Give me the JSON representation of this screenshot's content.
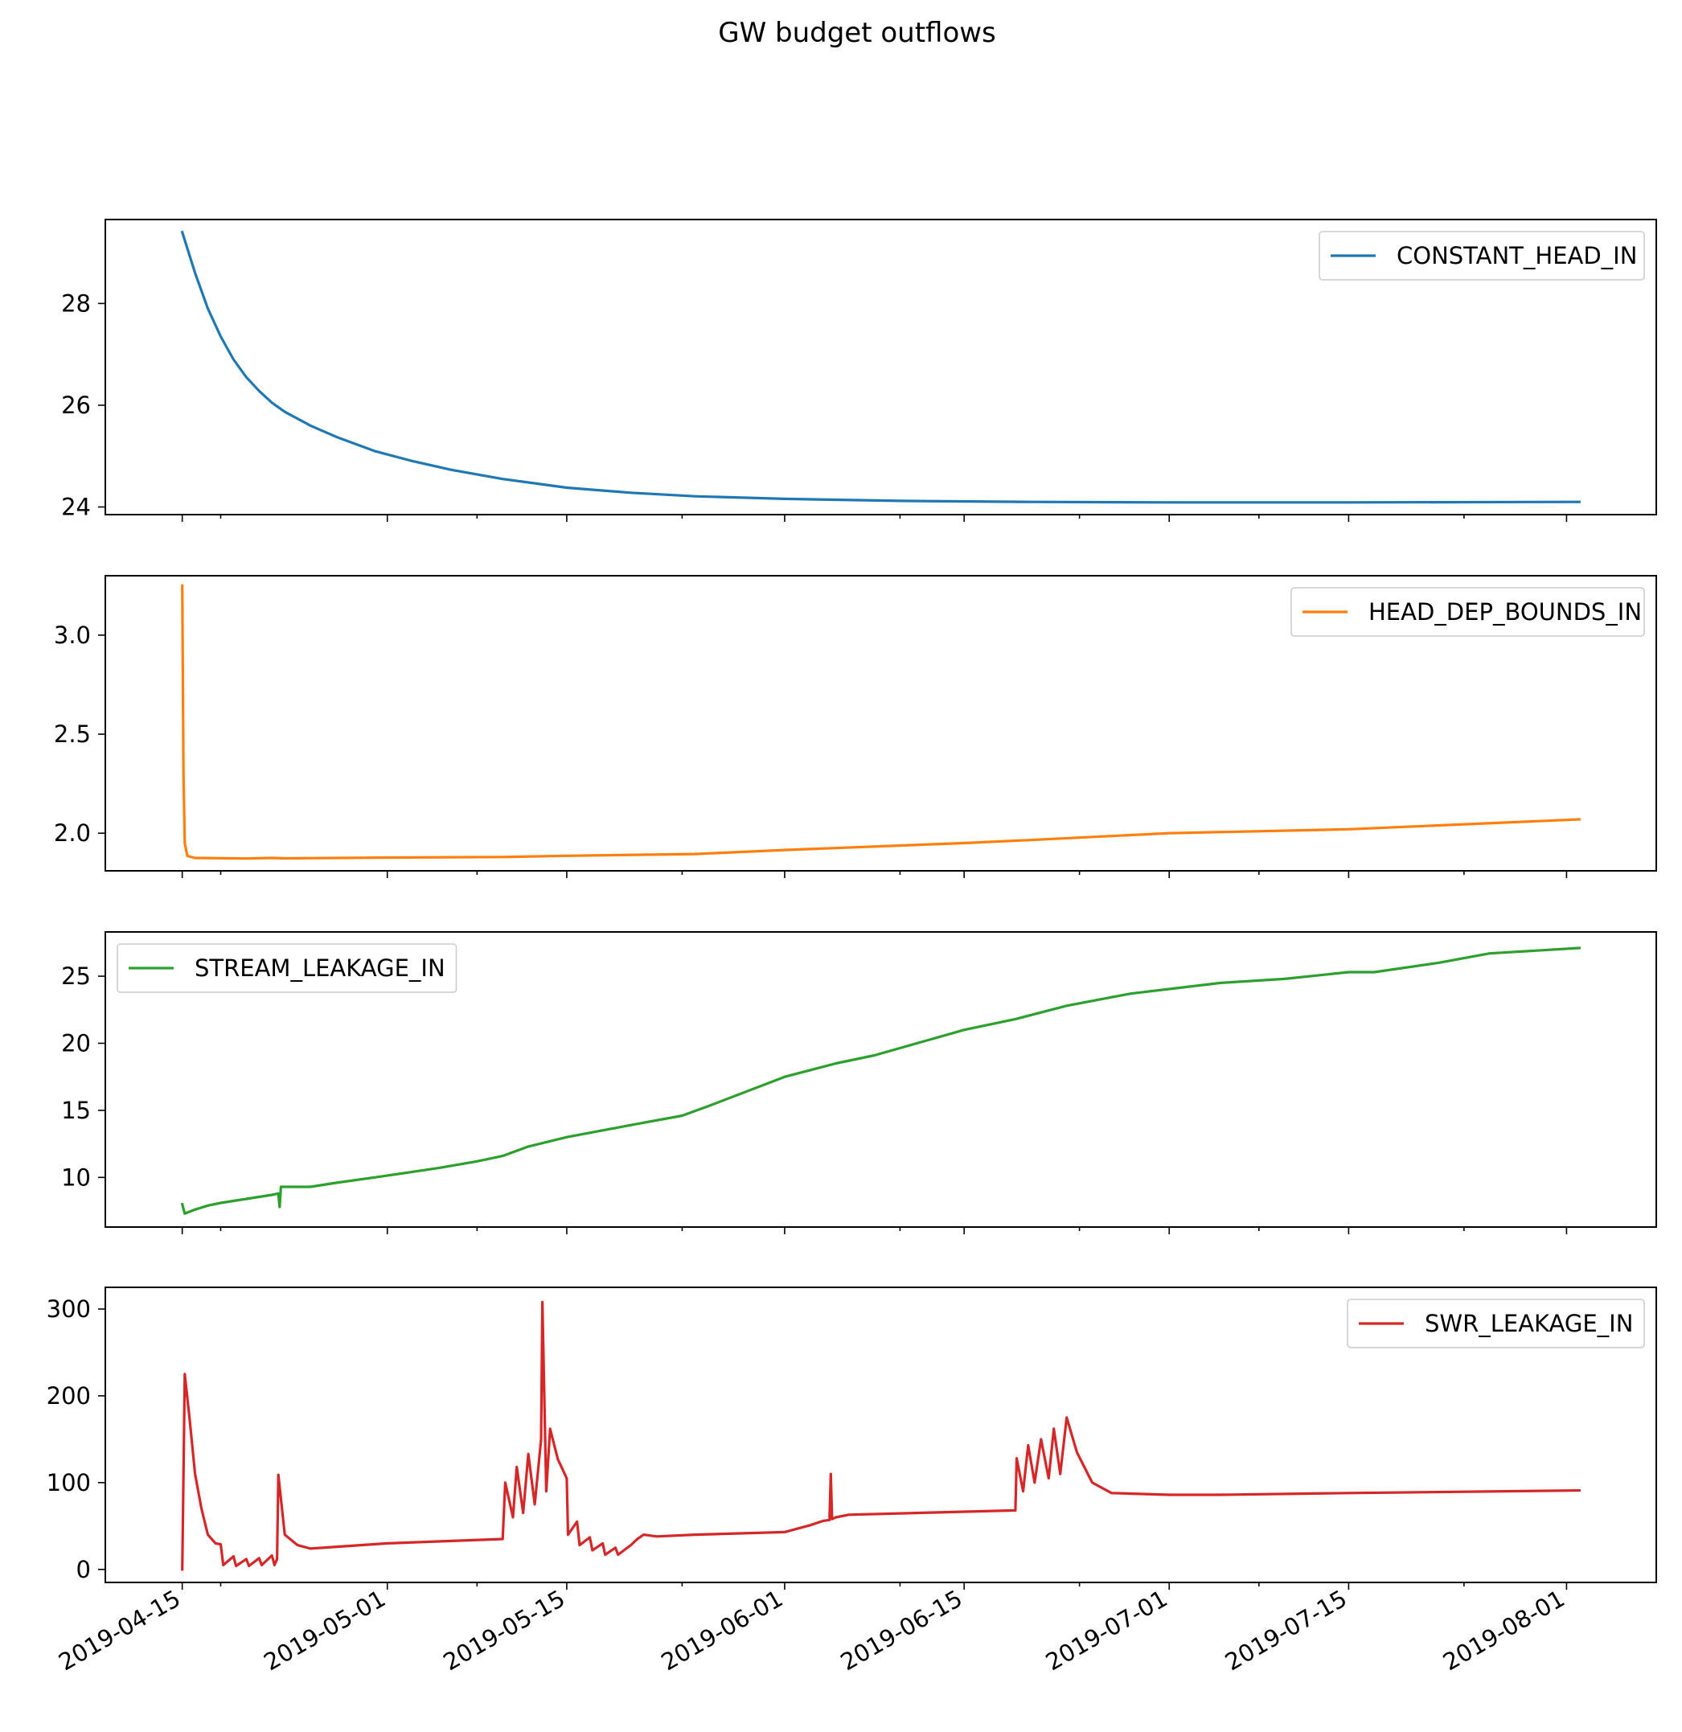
{
  "chart_data": {
    "type": "line",
    "title": "GW budget outflows",
    "x_axis": {
      "type": "date",
      "ticks": [
        "2019-04-15",
        "2019-05-01",
        "2019-05-15",
        "2019-06-01",
        "2019-06-15",
        "2019-07-01",
        "2019-07-15",
        "2019-08-01"
      ],
      "minor_ticks": [
        "2019-04-18",
        "2019-05-08",
        "2019-05-24",
        "2019-06-10",
        "2019-06-24",
        "2019-07-08",
        "2019-07-24"
      ],
      "xlim": [
        "2019-04-09",
        "2019-08-08"
      ]
    },
    "panels": [
      {
        "legend": "CONSTANT_HEAD_IN",
        "legend_loc": "upper right",
        "color": "#1f77b4",
        "ylim": [
          23.85,
          29.65
        ],
        "yticks": [
          24,
          26,
          28
        ],
        "points": [
          [
            "2019-04-15",
            29.4
          ],
          [
            "2019-04-16",
            28.6
          ],
          [
            "2019-04-17",
            27.9
          ],
          [
            "2019-04-18",
            27.35
          ],
          [
            "2019-04-19",
            26.9
          ],
          [
            "2019-04-20",
            26.55
          ],
          [
            "2019-04-21",
            26.28
          ],
          [
            "2019-04-22",
            26.05
          ],
          [
            "2019-04-23",
            25.87
          ],
          [
            "2019-04-25",
            25.6
          ],
          [
            "2019-04-27",
            25.38
          ],
          [
            "2019-04-30",
            25.1
          ],
          [
            "2019-05-03",
            24.9
          ],
          [
            "2019-05-06",
            24.73
          ],
          [
            "2019-05-10",
            24.55
          ],
          [
            "2019-05-15",
            24.38
          ],
          [
            "2019-05-20",
            24.28
          ],
          [
            "2019-05-25",
            24.21
          ],
          [
            "2019-06-01",
            24.16
          ],
          [
            "2019-06-10",
            24.12
          ],
          [
            "2019-06-20",
            24.1
          ],
          [
            "2019-07-01",
            24.09
          ],
          [
            "2019-07-15",
            24.09
          ],
          [
            "2019-08-02",
            24.1
          ]
        ]
      },
      {
        "legend": "HEAD_DEP_BOUNDS_IN",
        "legend_loc": "upper right",
        "color": "#ff7f0e",
        "ylim": [
          1.81,
          3.3
        ],
        "yticks": [
          2.0,
          2.5,
          3.0
        ],
        "points": [
          [
            "2019-04-15",
            3.25
          ],
          [
            "2019-04-15.1",
            2.3
          ],
          [
            "2019-04-15.2",
            1.95
          ],
          [
            "2019-04-15.4",
            1.885
          ],
          [
            "2019-04-16",
            1.875
          ],
          [
            "2019-04-20",
            1.872
          ],
          [
            "2019-04-22",
            1.875
          ],
          [
            "2019-04-23",
            1.873
          ],
          [
            "2019-05-01",
            1.877
          ],
          [
            "2019-05-10",
            1.88
          ],
          [
            "2019-05-15",
            1.886
          ],
          [
            "2019-05-25",
            1.895
          ],
          [
            "2019-06-01",
            1.915
          ],
          [
            "2019-06-15",
            1.95
          ],
          [
            "2019-06-20",
            1.965
          ],
          [
            "2019-07-01",
            2.0
          ],
          [
            "2019-07-15",
            2.02
          ],
          [
            "2019-08-02",
            2.07
          ]
        ]
      },
      {
        "legend": "STREAM_LEAKAGE_IN",
        "legend_loc": "upper left",
        "color": "#2ca02c",
        "ylim": [
          6.3,
          28.3
        ],
        "yticks": [
          10,
          15,
          20,
          25
        ],
        "points": [
          [
            "2019-04-15",
            8.0
          ],
          [
            "2019-04-15.2",
            7.3
          ],
          [
            "2019-04-16",
            7.6
          ],
          [
            "2019-04-17",
            7.9
          ],
          [
            "2019-04-18",
            8.1
          ],
          [
            "2019-04-20",
            8.4
          ],
          [
            "2019-04-22",
            8.7
          ],
          [
            "2019-04-22.5",
            8.8
          ],
          [
            "2019-04-22.6",
            7.8
          ],
          [
            "2019-04-22.7",
            9.3
          ],
          [
            "2019-04-25",
            9.3
          ],
          [
            "2019-04-27",
            9.6
          ],
          [
            "2019-04-30",
            10.0
          ],
          [
            "2019-05-05",
            10.7
          ],
          [
            "2019-05-08",
            11.2
          ],
          [
            "2019-05-10",
            11.6
          ],
          [
            "2019-05-12",
            12.3
          ],
          [
            "2019-05-15",
            13.0
          ],
          [
            "2019-05-20",
            13.9
          ],
          [
            "2019-05-24",
            14.6
          ],
          [
            "2019-05-26",
            15.3
          ],
          [
            "2019-06-01",
            17.5
          ],
          [
            "2019-06-05",
            18.5
          ],
          [
            "2019-06-08",
            19.1
          ],
          [
            "2019-06-15",
            21.0
          ],
          [
            "2019-06-19",
            21.8
          ],
          [
            "2019-06-23",
            22.8
          ],
          [
            "2019-06-28",
            23.7
          ],
          [
            "2019-07-05",
            24.5
          ],
          [
            "2019-07-10",
            24.8
          ],
          [
            "2019-07-15",
            25.3
          ],
          [
            "2019-07-17",
            25.3
          ],
          [
            "2019-07-22",
            26.0
          ],
          [
            "2019-07-26",
            26.7
          ],
          [
            "2019-08-02",
            27.1
          ]
        ]
      },
      {
        "legend": "SWR_LEAKAGE_IN",
        "legend_loc": "upper right",
        "color": "#d62728",
        "ylim": [
          -15,
          325
        ],
        "yticks": [
          0,
          100,
          200,
          300
        ],
        "points": [
          [
            "2019-04-15",
            0
          ],
          [
            "2019-04-15.2",
            225
          ],
          [
            "2019-04-15.6",
            170
          ],
          [
            "2019-04-16",
            110
          ],
          [
            "2019-04-16.5",
            70
          ],
          [
            "2019-04-17",
            40
          ],
          [
            "2019-04-17.6",
            30
          ],
          [
            "2019-04-18",
            29
          ],
          [
            "2019-04-18.2",
            5
          ],
          [
            "2019-04-19",
            15
          ],
          [
            "2019-04-19.2",
            4
          ],
          [
            "2019-04-20",
            12
          ],
          [
            "2019-04-20.2",
            4
          ],
          [
            "2019-04-21",
            13
          ],
          [
            "2019-04-21.2",
            5
          ],
          [
            "2019-04-22",
            16
          ],
          [
            "2019-04-22.2",
            5
          ],
          [
            "2019-04-22.4",
            12
          ],
          [
            "2019-04-22.5",
            109
          ],
          [
            "2019-04-23",
            40
          ],
          [
            "2019-04-24",
            28
          ],
          [
            "2019-04-25",
            24
          ],
          [
            "2019-05-01",
            30
          ],
          [
            "2019-05-10",
            35
          ],
          [
            "2019-05-10.2",
            100
          ],
          [
            "2019-05-10.8",
            60
          ],
          [
            "2019-05-11.1",
            118
          ],
          [
            "2019-05-11.6",
            65
          ],
          [
            "2019-05-12",
            133
          ],
          [
            "2019-05-12.5",
            75
          ],
          [
            "2019-05-13",
            150
          ],
          [
            "2019-05-13.1",
            308
          ],
          [
            "2019-05-13.4",
            90
          ],
          [
            "2019-05-13.7",
            162
          ],
          [
            "2019-05-14.3",
            127
          ],
          [
            "2019-05-15",
            105
          ],
          [
            "2019-05-15.1",
            40
          ],
          [
            "2019-05-15.8",
            55
          ],
          [
            "2019-05-16",
            28
          ],
          [
            "2019-05-16.8",
            37
          ],
          [
            "2019-05-17",
            22
          ],
          [
            "2019-05-17.8",
            30
          ],
          [
            "2019-05-18",
            17
          ],
          [
            "2019-05-18.8",
            25
          ],
          [
            "2019-05-19",
            17
          ],
          [
            "2019-05-20",
            28
          ],
          [
            "2019-05-20.5",
            35
          ],
          [
            "2019-05-21",
            40
          ],
          [
            "2019-05-22",
            38
          ],
          [
            "2019-05-25",
            40
          ],
          [
            "2019-06-01",
            43
          ],
          [
            "2019-06-02",
            47
          ],
          [
            "2019-06-03",
            51
          ],
          [
            "2019-06-04",
            56
          ],
          [
            "2019-06-04.5",
            57
          ],
          [
            "2019-06-04.6",
            110
          ],
          [
            "2019-06-04.7",
            58
          ],
          [
            "2019-06-05",
            60
          ],
          [
            "2019-06-06",
            63
          ],
          [
            "2019-06-19",
            68
          ],
          [
            "2019-06-19.1",
            128
          ],
          [
            "2019-06-19.6",
            90
          ],
          [
            "2019-06-20",
            143
          ],
          [
            "2019-06-20.5",
            100
          ],
          [
            "2019-06-21",
            150
          ],
          [
            "2019-06-21.6",
            105
          ],
          [
            "2019-06-22",
            162
          ],
          [
            "2019-06-22.5",
            110
          ],
          [
            "2019-06-23",
            175
          ],
          [
            "2019-06-23.8",
            135
          ],
          [
            "2019-06-25",
            100
          ],
          [
            "2019-06-26.5",
            88
          ],
          [
            "2019-07-01",
            86
          ],
          [
            "2019-07-05",
            86
          ],
          [
            "2019-07-15",
            88
          ],
          [
            "2019-08-02",
            91
          ]
        ]
      }
    ]
  }
}
